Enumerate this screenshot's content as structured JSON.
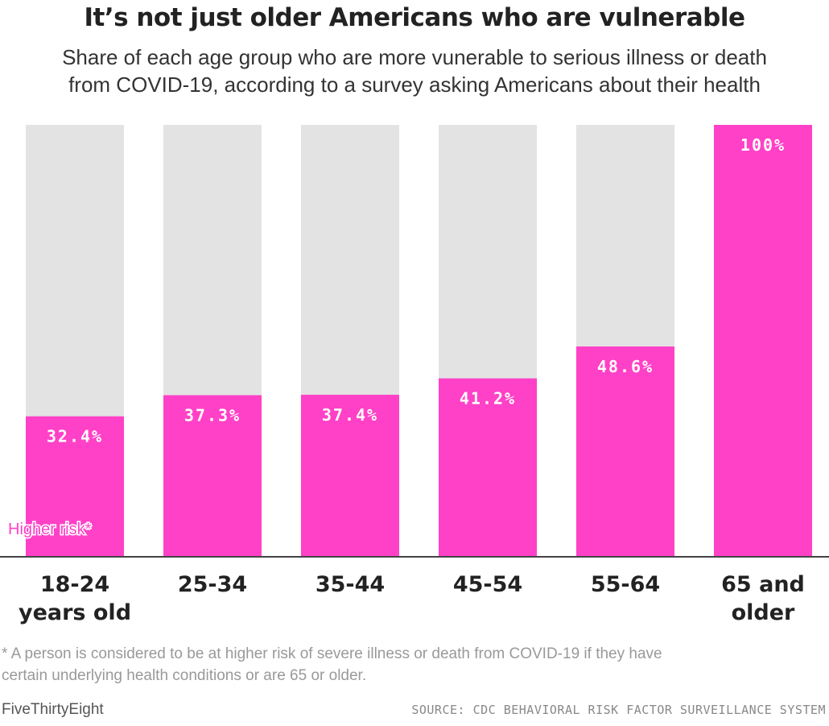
{
  "title": "It’s not just older Americans who are vulnerable",
  "subtitle_line1": "Share of each age group who are more vunerable to serious illness or death",
  "subtitle_line2": "from COVID-19, according to a survey asking Americans about their health",
  "footnote_line1": "* A person is considered to be at higher risk of severe illness or death from COVID-19 if they have",
  "footnote_line2": "certain underlying health conditions or are 65 or older.",
  "brand": "FiveThirtyEight",
  "source": "SOURCE: CDC BEHAVIORAL RISK FACTOR SURVEILLANCE SYSTEM",
  "colors": {
    "higher_risk": "#ff41c7",
    "background_bar": "#e3e3e3",
    "baseline": "#444444"
  },
  "chart_data": {
    "type": "bar",
    "categories": [
      [
        "18-24",
        "years old"
      ],
      [
        "25-34"
      ],
      [
        "35-44"
      ],
      [
        "45-54"
      ],
      [
        "55-64"
      ],
      [
        "65 and",
        "older"
      ]
    ],
    "values": [
      32.4,
      37.3,
      37.4,
      41.2,
      48.6,
      100
    ],
    "value_labels": [
      "32.4%",
      "37.3%",
      "37.4%",
      "41.2%",
      "48.6%",
      "100%"
    ],
    "series_label": "Higher risk*",
    "ylim": [
      0,
      100
    ],
    "grid": false,
    "legend": "inline-bottom-left"
  }
}
